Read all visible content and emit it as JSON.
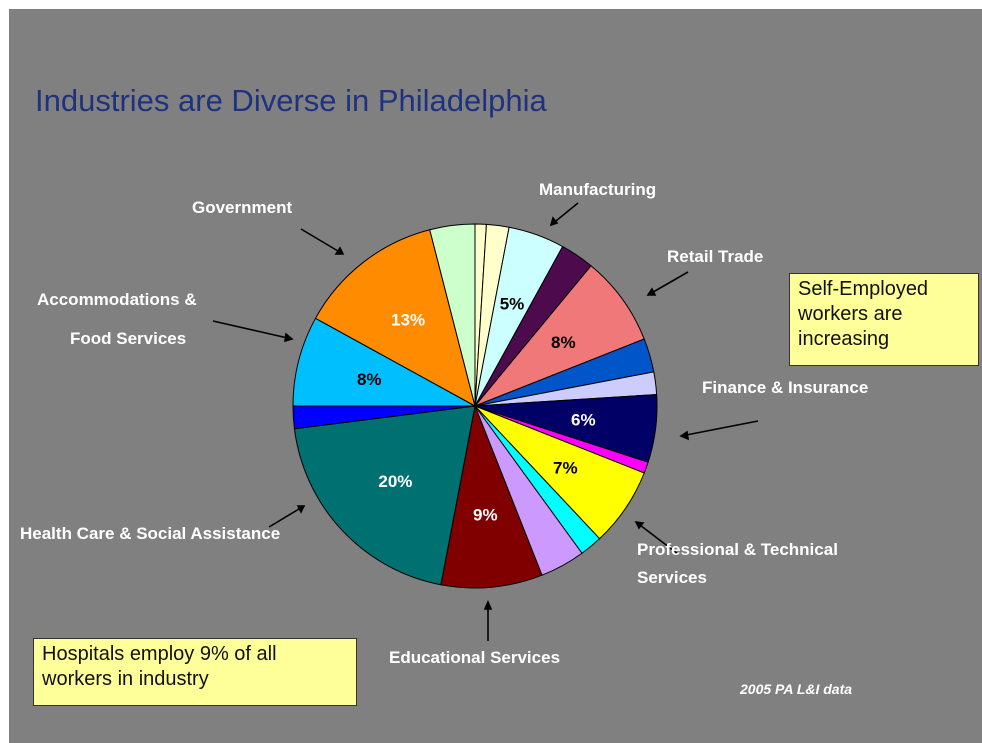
{
  "slide": {
    "title": "Industries are Diverse in Philadelphia",
    "background": "#808080",
    "notes": {
      "self_employed": "Self-Employed workers are increasing",
      "hospitals": "Hospitals employ 9% of all workers in industry"
    },
    "source": "2005 PA L&I data"
  },
  "chart_data": {
    "type": "pie",
    "title": "Industries are Diverse in Philadelphia",
    "unit": "%",
    "start": "top, clockwise",
    "slices": [
      {
        "label": "",
        "value": 1.0,
        "color": "#ffffcc"
      },
      {
        "label": "",
        "value": 2.0,
        "color": "#ffffcc"
      },
      {
        "label": "",
        "value": 5.0,
        "color": "#ccffff",
        "data_label": "5%"
      },
      {
        "label": "Manufacturing",
        "value": 3.0,
        "color": "#4d0a4d"
      },
      {
        "label": "Retail Trade",
        "value": 8.0,
        "color": "#f07878",
        "data_label": "8%"
      },
      {
        "label": "",
        "value": 3.0,
        "color": "#0055c8"
      },
      {
        "label": "",
        "value": 2.0,
        "color": "#ccccff"
      },
      {
        "label": "Finance & Insurance",
        "value": 6.0,
        "color": "#000066",
        "data_label": "6%"
      },
      {
        "label": "",
        "value": 1.0,
        "color": "#ff00ff"
      },
      {
        "label": "Professional & Technical Services",
        "value": 7.0,
        "color": "#ffff00",
        "data_label": "7%"
      },
      {
        "label": "",
        "value": 2.0,
        "color": "#00ffff"
      },
      {
        "label": "",
        "value": 4.0,
        "color": "#cc99ff"
      },
      {
        "label": "Educational Services",
        "value": 9.0,
        "color": "#800000",
        "data_label": "9%"
      },
      {
        "label": "Health Care & Social Assistance",
        "value": 20.0,
        "color": "#007070",
        "data_label": "20%"
      },
      {
        "label": "",
        "value": 2.0,
        "color": "#0000ff"
      },
      {
        "label": "Accommodations & Food Services",
        "value": 8.0,
        "color": "#00bfff",
        "data_label": "8%"
      },
      {
        "label": "Government",
        "value": 13.0,
        "color": "#ff8c00",
        "data_label": "13%"
      },
      {
        "label": "",
        "value": 4.0,
        "color": "#ccffcc"
      }
    ],
    "category_labels": {
      "manufacturing": "Manufacturing",
      "government": "Government",
      "retail": "Retail Trade",
      "accommodations_line1": "Accommodations &",
      "accommodations_line2": "Food Services",
      "finance": "Finance & Insurance",
      "health": "Health Care & Social Assistance",
      "professional_line1": "Professional & Technical",
      "professional_line2": "Services",
      "educational": "Educational Services"
    }
  }
}
